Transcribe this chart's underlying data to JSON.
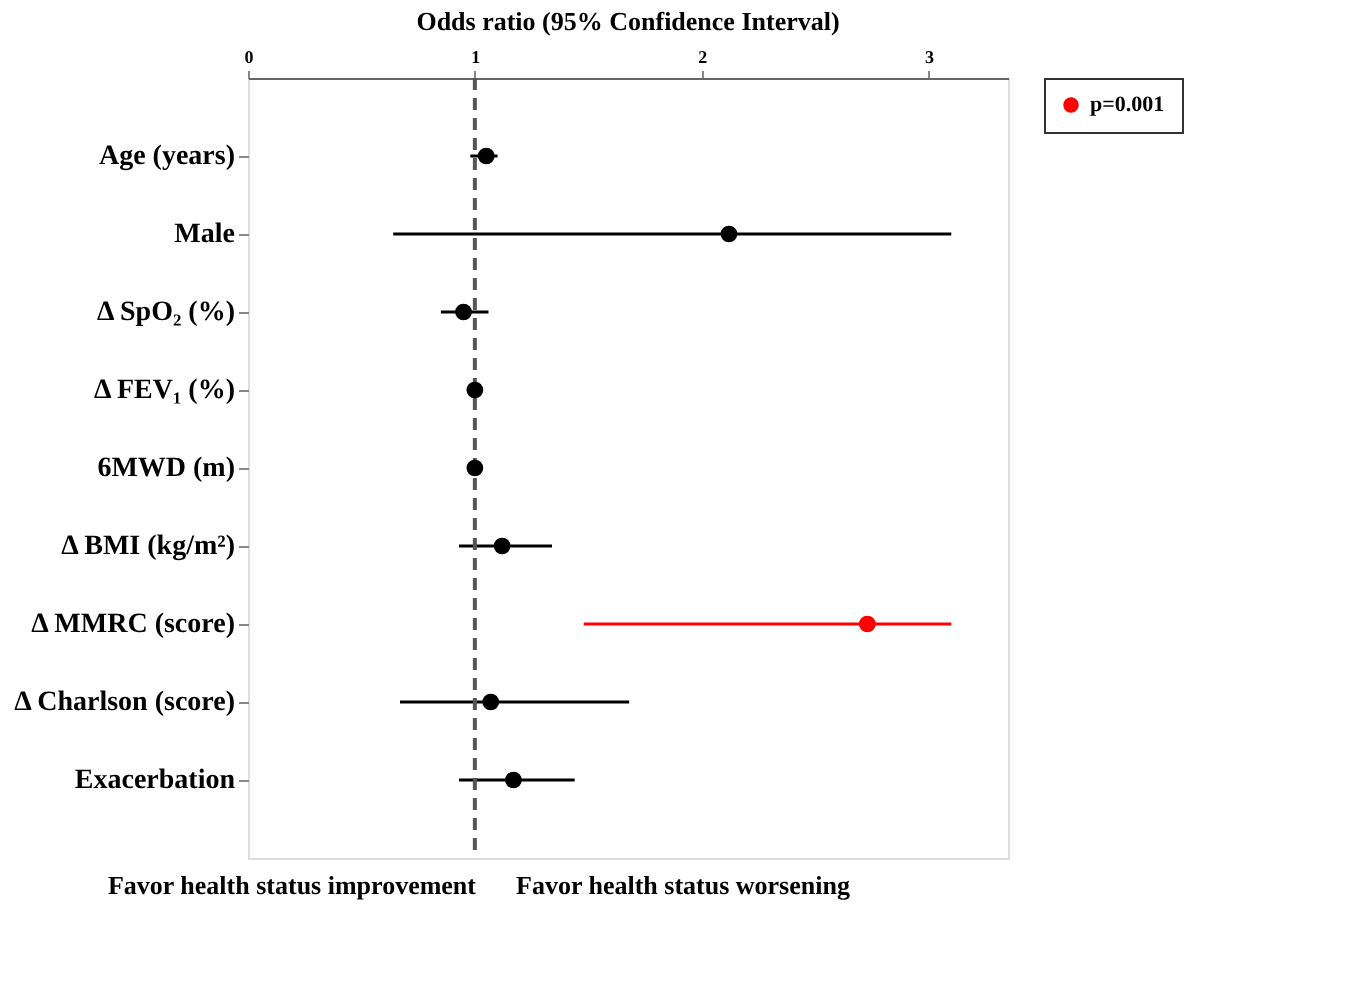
{
  "chart_data": {
    "type": "scatter",
    "orientation": "horizontal",
    "title": "Odds ratio (95% Confidence Interval)",
    "categories": [
      "Age (years)",
      "Male",
      "Δ SpO₂ (%)",
      "Δ FEV₁ (%)",
      "6MWD (m)",
      "Δ  BMI (kg/m²)",
      "Δ MMRC (score)",
      "Δ Charlson (score)",
      "Exacerbation"
    ],
    "series": [
      {
        "color": "#000000",
        "values": [
          1.05,
          2.12,
          0.95,
          1.0,
          1.0,
          1.12,
          null,
          1.07,
          1.17
        ],
        "errors": [
          [
            0.98,
            1.1
          ],
          [
            0.64,
            3.1
          ],
          [
            0.85,
            1.06
          ],
          null,
          null,
          [
            0.93,
            1.34
          ],
          null,
          [
            0.67,
            1.68
          ],
          [
            0.93,
            1.44
          ]
        ]
      },
      {
        "name": "p=0.001",
        "color": "#ff0000",
        "values": [
          null,
          null,
          null,
          null,
          null,
          null,
          2.73,
          null,
          null
        ],
        "errors": [
          null,
          null,
          null,
          null,
          null,
          null,
          [
            1.48,
            3.1
          ],
          null,
          null
        ]
      }
    ],
    "xlim": [
      0,
      3.35
    ],
    "xticks": [
      0,
      1,
      2,
      3
    ],
    "ref_lines": [
      {
        "axis": "x",
        "value": 1,
        "line_style": "dashed",
        "color": "#555555"
      }
    ],
    "annotations": [
      "Favor health status improvement",
      "Favor health status worsening"
    ],
    "marker": "circle",
    "legend": "right",
    "grid": false
  }
}
